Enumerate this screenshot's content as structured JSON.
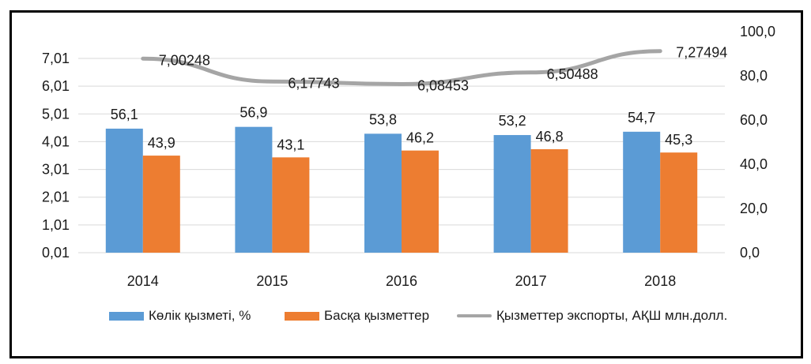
{
  "chart_data": {
    "type": "bar+line",
    "title": "",
    "categories": [
      "2014",
      "2015",
      "2016",
      "2017",
      "2018"
    ],
    "series": [
      {
        "name": "Көлік қызметі, %",
        "type": "bar",
        "axis": "right",
        "color": "#5B9BD5",
        "values": [
          56.1,
          56.9,
          53.8,
          53.2,
          54.7
        ],
        "labels": [
          "56,1",
          "56,9",
          "53,8",
          "53,2",
          "54,7"
        ]
      },
      {
        "name": "Басқа қызметтер",
        "type": "bar",
        "axis": "right",
        "color": "#ED7D31",
        "values": [
          43.9,
          43.1,
          46.2,
          46.8,
          45.3
        ],
        "labels": [
          "43,9",
          "43,1",
          "46,2",
          "46,8",
          "45,3"
        ]
      },
      {
        "name": "Қызметтер экспорты, АҚШ млн.долл.",
        "type": "line",
        "axis": "left",
        "color": "#A5A5A5",
        "values": [
          7.00248,
          6.17743,
          6.08453,
          6.50488,
          7.27494
        ],
        "labels": [
          "7,00248",
          "6,17743",
          "6,08453",
          "6,50488",
          "7,27494"
        ]
      }
    ],
    "left_axis": {
      "ticks": [
        "0,01",
        "1,01",
        "2,01",
        "3,01",
        "4,01",
        "5,01",
        "6,01",
        "7,01"
      ],
      "range": [
        0.01,
        7.01
      ]
    },
    "right_axis": {
      "ticks": [
        "0,0",
        "20,0",
        "40,0",
        "60,0",
        "80,0",
        "100,0"
      ],
      "range": [
        0,
        100
      ]
    },
    "xlabel": "",
    "ylabel": "",
    "grid": true,
    "legend_position": "bottom"
  },
  "legend": [
    {
      "label": "Көлік қызметі, %",
      "kind": "bar",
      "color": "#5B9BD5"
    },
    {
      "label": "Басқа қызметтер",
      "kind": "bar",
      "color": "#ED7D31"
    },
    {
      "label": "Қызметтер экспорты, АҚШ млн.долл.",
      "kind": "line",
      "color": "#A5A5A5"
    }
  ]
}
